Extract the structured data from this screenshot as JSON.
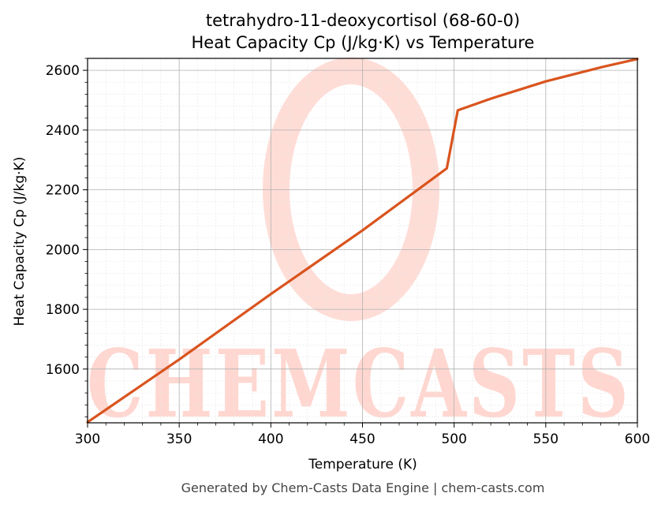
{
  "chart_data": {
    "type": "line",
    "title_line1": "tetrahydro-11-deoxycortisol (68-60-0)",
    "title_line2": "Heat Capacity Cp (J/kg·K) vs Temperature",
    "xlabel": "Temperature (K)",
    "ylabel": "Heat Capacity Cp (J/kg·K)",
    "xlim": [
      300,
      600
    ],
    "ylim": [
      1420,
      2640
    ],
    "x_ticks": [
      300,
      350,
      400,
      450,
      500,
      550,
      600
    ],
    "y_ticks": [
      1600,
      1800,
      2000,
      2200,
      2400,
      2600
    ],
    "grid": true,
    "line_color": "#d9541e",
    "series": [
      {
        "x": [
          300,
          350,
          400,
          450,
          496,
          502,
          520,
          550,
          580,
          600
        ],
        "y": [
          1422,
          1632,
          1851,
          2064,
          2272,
          2466,
          2505,
          2563,
          2610,
          2638
        ]
      }
    ]
  },
  "watermark": {
    "text": "CHEMCASTS",
    "color": "#ffd7d0"
  },
  "footer": "Generated by Chem-Casts Data Engine | chem-casts.com"
}
